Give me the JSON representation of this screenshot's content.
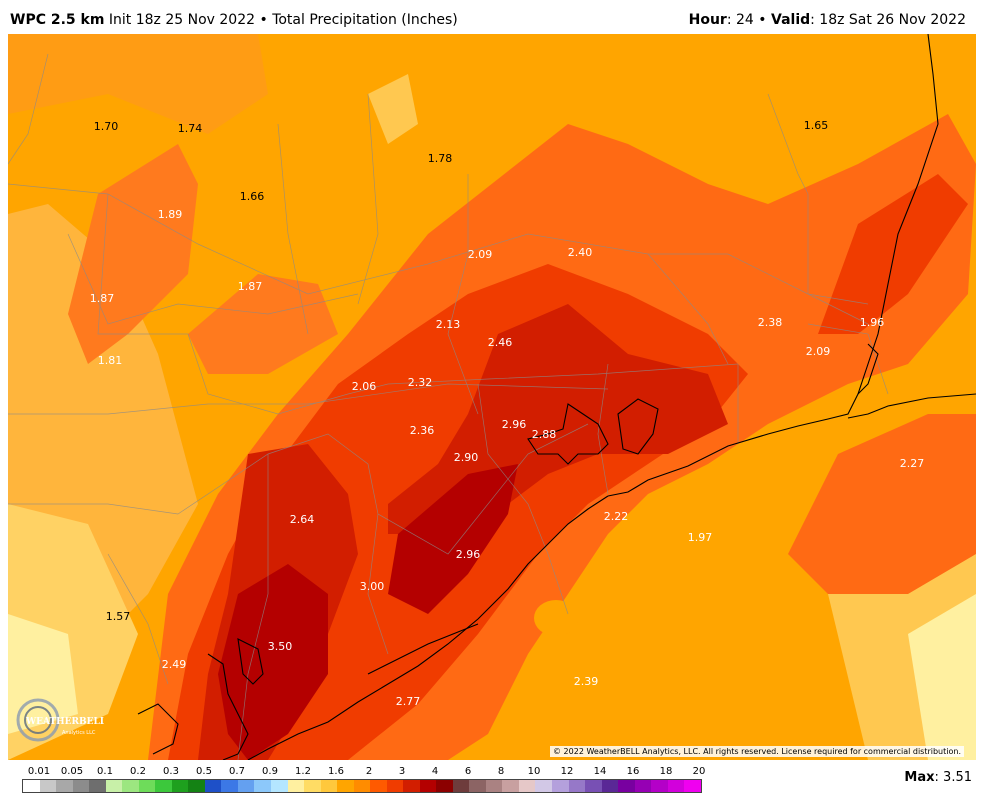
{
  "header": {
    "model": "WPC 2.5 km",
    "init": "Init 18z 25 Nov 2022",
    "sep": "•",
    "field": "Total Precipitation (Inches)",
    "hour_label": "Hour",
    "hour_value": ": 24",
    "valid_label": "Valid",
    "valid_value": ": 18z Sat 26 Nov 2022"
  },
  "map": {
    "labels": [
      "1.70",
      "1.74",
      "1.78",
      "1.65",
      "1.89",
      "1.66",
      "2.09",
      "2.40",
      "1.87",
      "1.87",
      "2.13",
      "2.46",
      "2.38",
      "1.96",
      "1.81",
      "2.06",
      "2.32",
      "2.09",
      "2.36",
      "2.96",
      "2.88",
      "2.90",
      "2.27",
      "2.64",
      "2.22",
      "1.97",
      "2.96",
      "3.00",
      "1.57",
      "3.50",
      "2.49",
      "2.39",
      "2.77"
    ],
    "copyright": "© 2022 WeatherBELL Analytics, LLC. All rights reserved. License required for commercial distribution."
  },
  "logo": {
    "text": "WEATHERBELL",
    "subtext": "Analytics LLC"
  },
  "legend": {
    "ticks": [
      "0.01",
      "0.05",
      "0.1",
      "0.2",
      "0.3",
      "0.5",
      "0.7",
      "0.9",
      "1.2",
      "1.6",
      "2",
      "3",
      "4",
      "6",
      "8",
      "10",
      "12",
      "14",
      "16",
      "18",
      "20"
    ],
    "colors": [
      "#ffffff",
      "#c8c8c8",
      "#a8a8a8",
      "#8c8c8c",
      "#6e6e6e",
      "#c8f0a8",
      "#9ce680",
      "#6edc5a",
      "#3cc83c",
      "#1ea01e",
      "#148214",
      "#1e50c8",
      "#3c78e6",
      "#64a0f0",
      "#8cc8fa",
      "#b4e6ff",
      "#fff0a0",
      "#ffdc64",
      "#ffc83c",
      "#ffa500",
      "#ff8c00",
      "#ff5a00",
      "#f03c00",
      "#d21e00",
      "#b40000",
      "#8c0000",
      "#6e3c3c",
      "#8c6464",
      "#aa8282",
      "#c8a0a0",
      "#e6c8c8",
      "#d2c8e6",
      "#b4a0dc",
      "#9678c8",
      "#7850b4",
      "#5a2896",
      "#7800a0",
      "#9600b4",
      "#b400c8",
      "#d200dc",
      "#f000f0"
    ]
  },
  "max": {
    "label": "Max",
    "value": ": 3.51"
  },
  "colors": {
    "header_bg": "#ffffff",
    "base_orange": "#ffa500"
  }
}
